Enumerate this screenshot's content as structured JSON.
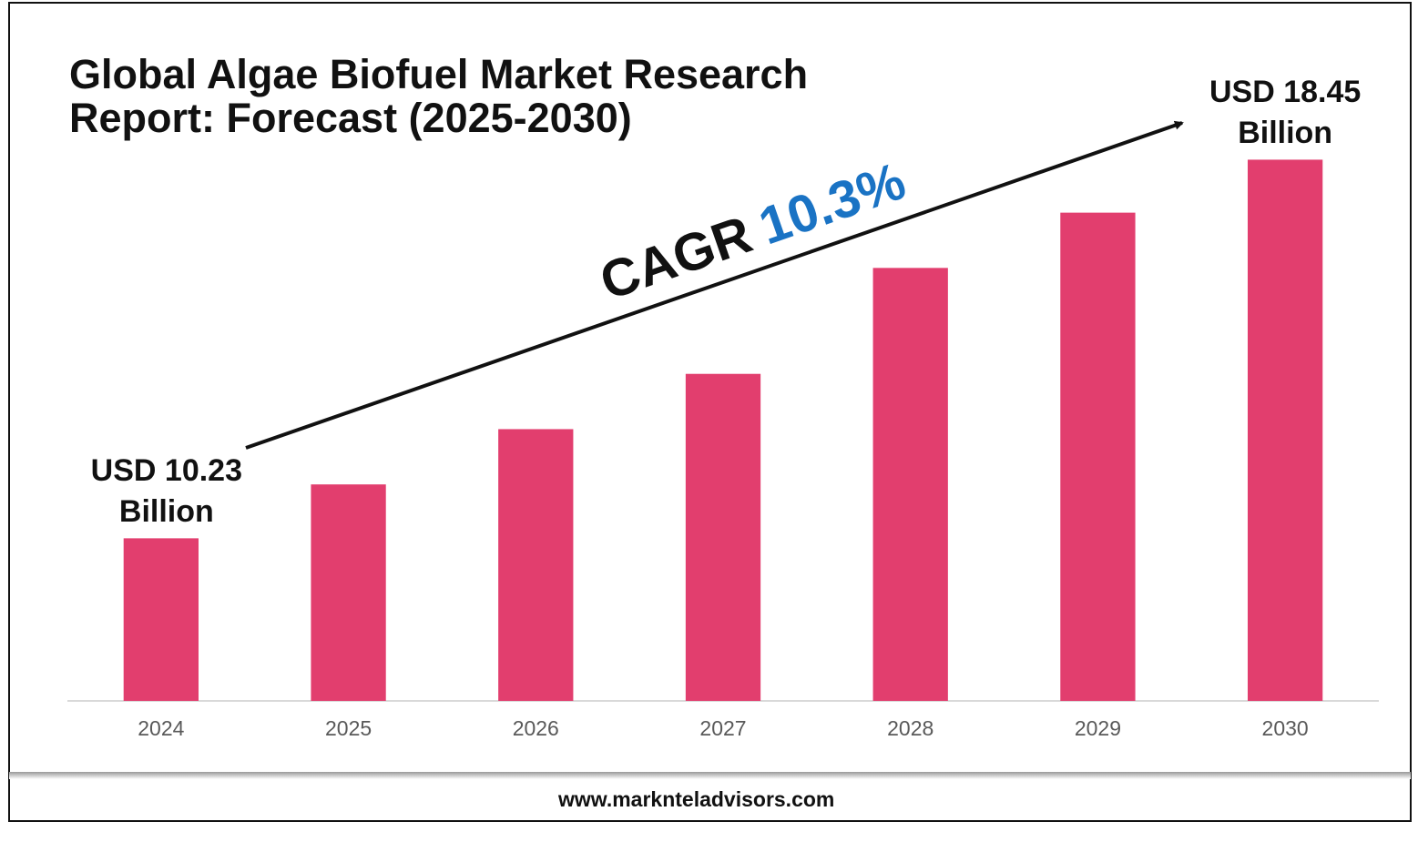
{
  "chart_data": {
    "type": "bar",
    "title": "Global Algae Biofuel Market Research Report: Forecast (2025-2030)",
    "categories": [
      "2024",
      "2025",
      "2026",
      "2027",
      "2028",
      "2029",
      "2030"
    ],
    "values": [
      10.23,
      11.4,
      12.6,
      13.8,
      16.1,
      17.3,
      18.45
    ],
    "value_labels": [
      "USD 10.23 Billion",
      null,
      null,
      null,
      null,
      null,
      "USD 18.45 Billion"
    ],
    "color": "#e23e6e",
    "ylim": [
      6.7,
      20
    ],
    "annotation": {
      "text": "CAGR",
      "value": "10.3%",
      "value_color": "#1a73c4"
    },
    "source": "www.marknteladvisors.com"
  }
}
